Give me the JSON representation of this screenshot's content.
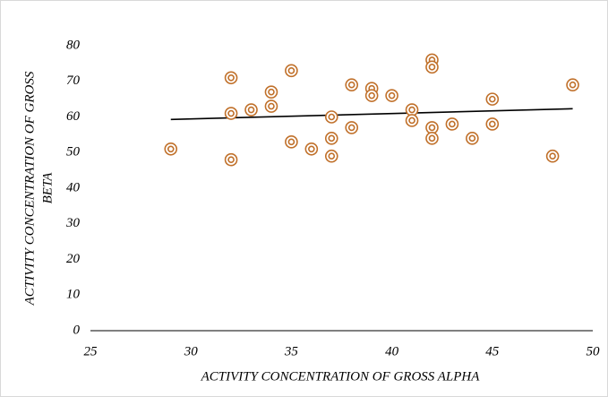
{
  "chart_data": {
    "type": "scatter",
    "xlabel": "ACTIVITY CONCENTRATION OF GROSS ALPHA",
    "ylabel": [
      "ACTIVITY CONCENTRATION OF GROSS",
      "BETA"
    ],
    "color": "#c0702a",
    "x": [
      29,
      32,
      32,
      32,
      33,
      34,
      34,
      35,
      35,
      36,
      37,
      37,
      37,
      38,
      38,
      39,
      39,
      40,
      41,
      41,
      42,
      42,
      42,
      42,
      43,
      44,
      45,
      45,
      48,
      49
    ],
    "values": [
      51,
      71,
      61,
      48,
      62,
      67,
      63,
      73,
      53,
      51,
      60,
      54,
      49,
      69,
      57,
      68,
      66,
      66,
      62,
      59,
      76,
      74,
      57,
      54,
      58,
      54,
      65,
      58,
      49,
      69
    ],
    "trendline": {
      "x": [
        29,
        49
      ],
      "y": [
        59.3,
        62.3
      ],
      "color": "#000000"
    },
    "xlim": [
      25,
      50
    ],
    "xticks": [
      25,
      30,
      35,
      40,
      45,
      50
    ],
    "ylim": [
      0,
      80
    ],
    "yticks": [
      0,
      10,
      20,
      30,
      40,
      50,
      60,
      70,
      80
    ],
    "grid": false
  }
}
